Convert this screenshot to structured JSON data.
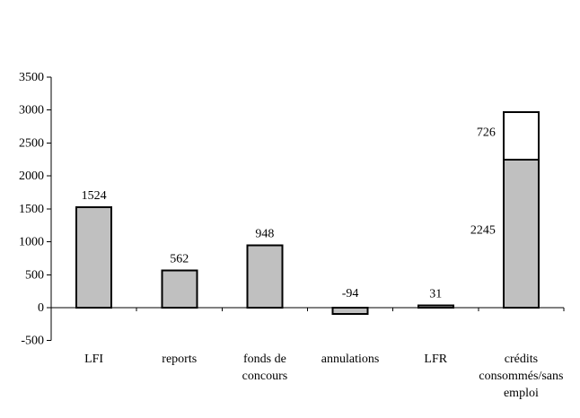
{
  "chart_data": {
    "type": "bar",
    "title": "",
    "xlabel": "",
    "ylabel": "",
    "grid": false,
    "legend": false,
    "y_min": -500,
    "y_max": 3500,
    "y_ticks": [
      "3500",
      "3000",
      "2500",
      "2000",
      "1500",
      "1000",
      "500",
      "0",
      "-500"
    ],
    "bar_fill_color": "#C0C0C0",
    "bar_border_color": "#000000",
    "stacked_segment_color": "#FFFFFF",
    "bars": [
      {
        "label_lines": [
          "LFI"
        ],
        "data_label_side": "above",
        "segments": [
          {
            "value": 1524,
            "fill": "#C0C0C0",
            "data_label": "1524"
          }
        ]
      },
      {
        "label_lines": [
          "reports"
        ],
        "data_label_side": "above",
        "segments": [
          {
            "value": 562,
            "fill": "#C0C0C0",
            "data_label": "562"
          }
        ]
      },
      {
        "label_lines": [
          "fonds de",
          "concours"
        ],
        "data_label_side": "above",
        "segments": [
          {
            "value": 948,
            "fill": "#C0C0C0",
            "data_label": "948"
          }
        ]
      },
      {
        "label_lines": [
          "annulations"
        ],
        "data_label_side": "above",
        "segments": [
          {
            "value": -94,
            "fill": "#C0C0C0",
            "data_label": "-94"
          }
        ]
      },
      {
        "label_lines": [
          "LFR"
        ],
        "data_label_side": "above",
        "segments": [
          {
            "value": 31,
            "fill": "#C0C0C0",
            "data_label": "31"
          }
        ]
      },
      {
        "label_lines": [
          "crédits",
          "consommés/sans",
          "emploi"
        ],
        "data_label_side": "left",
        "segments": [
          {
            "value": 2245,
            "fill": "#C0C0C0",
            "data_label": "2245"
          },
          {
            "value": 726,
            "fill": "#FFFFFF",
            "data_label": "726"
          }
        ]
      }
    ]
  }
}
